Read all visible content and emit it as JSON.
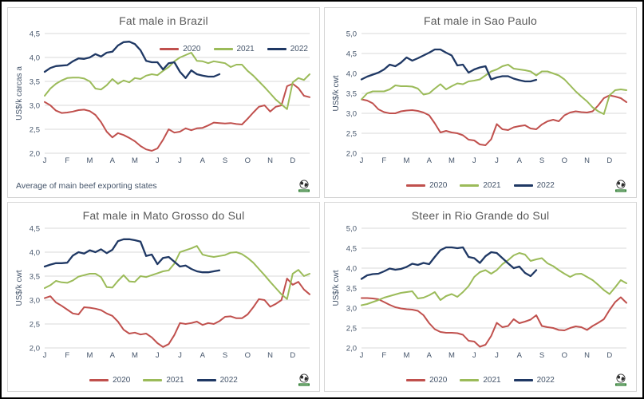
{
  "colors": {
    "series_2020": "#C0504D",
    "series_2021": "#9BBB59",
    "series_2022": "#1F3864",
    "gridline": "#D9D9D9",
    "axis_text": "#44546A",
    "title_text": "#595959",
    "panel_border": "#D6D6D6",
    "frame_border": "#000000"
  },
  "logo": {
    "name": "globe-logo",
    "banner_color": "#2E7D32"
  },
  "chart_data": [
    {
      "type": "line",
      "title": "Fat male in Brazil",
      "ylabel": "US$/k carcas a",
      "footnote": "Average of main beef exporting states",
      "legend_position": "top-right",
      "ylim": [
        2.0,
        4.5
      ],
      "ytick_step": 0.5,
      "grid": "horizontal",
      "categories": [
        "J",
        "F",
        "M",
        "A",
        "M",
        "J",
        "J",
        "A",
        "S",
        "O",
        "N",
        "D"
      ],
      "points_per_year": 48,
      "series": [
        {
          "name": "2020",
          "color": "#C0504D",
          "values": [
            3.07,
            3.0,
            2.89,
            2.84,
            2.85,
            2.87,
            2.9,
            2.91,
            2.88,
            2.8,
            2.65,
            2.45,
            2.33,
            2.42,
            2.38,
            2.32,
            2.25,
            2.15,
            2.08,
            2.05,
            2.1,
            2.28,
            2.5,
            2.43,
            2.45,
            2.52,
            2.48,
            2.52,
            2.53,
            2.58,
            2.64,
            2.63,
            2.62,
            2.63,
            2.61,
            2.6,
            2.72,
            2.85,
            2.97,
            3.0,
            2.87,
            2.97,
            3.0,
            3.4,
            3.45,
            3.36,
            3.2,
            3.17
          ]
        },
        {
          "name": "2021",
          "color": "#9BBB59",
          "values": [
            3.2,
            3.35,
            3.45,
            3.52,
            3.57,
            3.58,
            3.58,
            3.56,
            3.5,
            3.35,
            3.33,
            3.42,
            3.55,
            3.45,
            3.52,
            3.48,
            3.57,
            3.55,
            3.62,
            3.65,
            3.63,
            3.72,
            3.8,
            3.92,
            4.0,
            4.05,
            4.1,
            3.93,
            3.92,
            3.88,
            3.92,
            3.9,
            3.88,
            3.8,
            3.85,
            3.85,
            3.72,
            3.62,
            3.5,
            3.38,
            3.25,
            3.12,
            3.02,
            2.92,
            3.48,
            3.57,
            3.53,
            3.65
          ]
        },
        {
          "name": "2022",
          "color": "#1F3864",
          "values": [
            3.7,
            3.78,
            3.82,
            3.83,
            3.84,
            3.92,
            3.98,
            3.97,
            4.0,
            4.07,
            4.02,
            4.1,
            4.12,
            4.25,
            4.32,
            4.33,
            4.28,
            4.15,
            3.93,
            3.9,
            3.9,
            3.75,
            3.88,
            3.9,
            3.7,
            3.57,
            3.73,
            3.65,
            3.62,
            3.6,
            3.6,
            3.65
          ]
        }
      ]
    },
    {
      "type": "line",
      "title": "Fat male in Sao Paulo",
      "ylabel": "US$/k cwt",
      "footnote": "",
      "legend_position": "bottom-center",
      "ylim": [
        2.0,
        5.0
      ],
      "ytick_step": 0.5,
      "grid": "horizontal",
      "categories": [
        "J",
        "F",
        "M",
        "A",
        "M",
        "J",
        "J",
        "A",
        "S",
        "O",
        "N",
        "D"
      ],
      "points_per_year": 48,
      "series": [
        {
          "name": "2020",
          "color": "#C0504D",
          "values": [
            3.35,
            3.32,
            3.25,
            3.1,
            3.03,
            3.0,
            3.0,
            3.05,
            3.07,
            3.08,
            3.06,
            3.02,
            2.95,
            2.75,
            2.52,
            2.56,
            2.52,
            2.5,
            2.45,
            2.34,
            2.32,
            2.22,
            2.2,
            2.35,
            2.73,
            2.6,
            2.58,
            2.65,
            2.68,
            2.7,
            2.62,
            2.6,
            2.72,
            2.8,
            2.84,
            2.8,
            2.95,
            3.02,
            3.05,
            3.03,
            3.02,
            3.05,
            3.2,
            3.38,
            3.45,
            3.42,
            3.38,
            3.28
          ]
        },
        {
          "name": "2021",
          "color": "#9BBB59",
          "values": [
            3.35,
            3.5,
            3.55,
            3.55,
            3.55,
            3.6,
            3.7,
            3.68,
            3.68,
            3.67,
            3.62,
            3.47,
            3.5,
            3.62,
            3.73,
            3.6,
            3.68,
            3.75,
            3.73,
            3.8,
            3.82,
            3.85,
            3.95,
            4.05,
            4.1,
            4.18,
            4.22,
            4.12,
            4.1,
            4.08,
            4.05,
            3.95,
            4.05,
            4.05,
            4.0,
            3.95,
            3.85,
            3.7,
            3.55,
            3.42,
            3.3,
            3.15,
            3.05,
            2.98,
            3.45,
            3.58,
            3.6,
            3.58
          ]
        },
        {
          "name": "2022",
          "color": "#1F3864",
          "values": [
            3.85,
            3.92,
            3.97,
            4.02,
            4.1,
            4.22,
            4.18,
            4.27,
            4.4,
            4.32,
            4.38,
            4.45,
            4.52,
            4.6,
            4.6,
            4.52,
            4.45,
            4.2,
            4.22,
            4.02,
            4.1,
            4.15,
            4.18,
            3.85,
            3.9,
            3.93,
            3.93,
            3.87,
            3.83,
            3.8,
            3.8,
            3.84
          ]
        }
      ]
    },
    {
      "type": "line",
      "title": "Fat male in Mato Grosso do Sul",
      "ylabel": "US$/k cwt",
      "footnote": "",
      "legend_position": "bottom-center",
      "ylim": [
        2.0,
        4.5
      ],
      "ytick_step": 0.5,
      "grid": "horizontal",
      "categories": [
        "J",
        "F",
        "M",
        "A",
        "M",
        "J",
        "J",
        "A",
        "S",
        "O",
        "N",
        "D"
      ],
      "points_per_year": 48,
      "series": [
        {
          "name": "2020",
          "color": "#C0504D",
          "values": [
            3.04,
            3.08,
            2.95,
            2.88,
            2.8,
            2.72,
            2.7,
            2.85,
            2.84,
            2.82,
            2.79,
            2.72,
            2.67,
            2.55,
            2.38,
            2.3,
            2.32,
            2.28,
            2.3,
            2.22,
            2.1,
            2.02,
            2.08,
            2.27,
            2.52,
            2.5,
            2.52,
            2.55,
            2.48,
            2.52,
            2.5,
            2.56,
            2.65,
            2.66,
            2.62,
            2.62,
            2.7,
            2.85,
            3.02,
            3.0,
            2.86,
            2.92,
            3.0,
            3.45,
            3.32,
            3.38,
            3.22,
            3.12
          ]
        },
        {
          "name": "2021",
          "color": "#9BBB59",
          "values": [
            3.25,
            3.31,
            3.4,
            3.37,
            3.36,
            3.41,
            3.49,
            3.52,
            3.55,
            3.55,
            3.48,
            3.27,
            3.26,
            3.4,
            3.52,
            3.39,
            3.38,
            3.5,
            3.48,
            3.52,
            3.56,
            3.6,
            3.62,
            3.76,
            4.0,
            4.04,
            4.08,
            4.13,
            3.95,
            3.92,
            3.9,
            3.92,
            3.94,
            3.99,
            4.0,
            3.96,
            3.88,
            3.78,
            3.65,
            3.52,
            3.38,
            3.25,
            3.12,
            3.02,
            3.55,
            3.63,
            3.5,
            3.55
          ]
        },
        {
          "name": "2022",
          "color": "#1F3864",
          "values": [
            3.7,
            3.74,
            3.77,
            3.77,
            3.78,
            3.93,
            4.0,
            3.97,
            4.04,
            4.0,
            4.06,
            3.98,
            4.05,
            4.23,
            4.27,
            4.27,
            4.25,
            4.22,
            3.92,
            3.95,
            3.75,
            3.88,
            3.9,
            3.8,
            3.7,
            3.72,
            3.65,
            3.6,
            3.58,
            3.58,
            3.6,
            3.62
          ]
        }
      ]
    },
    {
      "type": "line",
      "title": "Steer in Rio Grande do Sul",
      "ylabel": "US$/k cwt",
      "footnote": "",
      "legend_position": "bottom-center",
      "ylim": [
        2.0,
        5.0
      ],
      "ytick_step": 0.5,
      "grid": "horizontal",
      "categories": [
        "J",
        "F",
        "M",
        "A",
        "M",
        "J",
        "J",
        "A",
        "S",
        "O",
        "N",
        "D"
      ],
      "points_per_year": 48,
      "series": [
        {
          "name": "2020",
          "color": "#C0504D",
          "values": [
            3.25,
            3.25,
            3.24,
            3.22,
            3.15,
            3.08,
            3.02,
            2.99,
            2.97,
            2.96,
            2.93,
            2.82,
            2.62,
            2.47,
            2.4,
            2.38,
            2.38,
            2.37,
            2.33,
            2.18,
            2.16,
            2.03,
            2.08,
            2.3,
            2.63,
            2.52,
            2.55,
            2.72,
            2.62,
            2.66,
            2.71,
            2.82,
            2.55,
            2.52,
            2.5,
            2.45,
            2.44,
            2.5,
            2.54,
            2.52,
            2.45,
            2.55,
            2.63,
            2.72,
            2.95,
            3.15,
            3.27,
            3.13
          ]
        },
        {
          "name": "2021",
          "color": "#9BBB59",
          "values": [
            3.07,
            3.1,
            3.15,
            3.2,
            3.26,
            3.3,
            3.34,
            3.38,
            3.4,
            3.42,
            3.24,
            3.26,
            3.32,
            3.4,
            3.2,
            3.3,
            3.35,
            3.28,
            3.4,
            3.55,
            3.78,
            3.9,
            3.95,
            3.86,
            3.95,
            4.1,
            4.2,
            4.32,
            4.38,
            4.34,
            4.18,
            4.22,
            4.25,
            4.12,
            4.05,
            3.95,
            3.86,
            3.78,
            3.85,
            3.86,
            3.78,
            3.7,
            3.58,
            3.45,
            3.35,
            3.52,
            3.7,
            3.62
          ]
        },
        {
          "name": "2022",
          "color": "#1F3864",
          "values": [
            3.73,
            3.82,
            3.85,
            3.86,
            3.92,
            3.99,
            3.96,
            3.98,
            4.03,
            4.11,
            4.08,
            4.13,
            4.1,
            4.28,
            4.45,
            4.52,
            4.52,
            4.5,
            4.52,
            4.28,
            4.25,
            4.13,
            4.3,
            4.4,
            4.38,
            4.25,
            4.12,
            4.0,
            4.04,
            3.88,
            3.8,
            3.95
          ]
        }
      ]
    }
  ]
}
